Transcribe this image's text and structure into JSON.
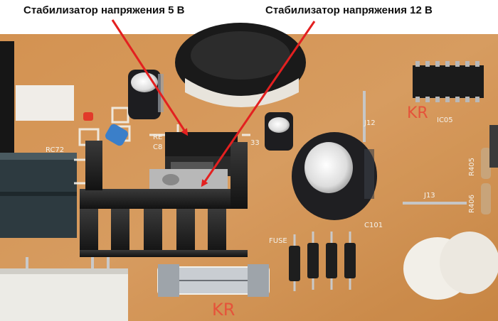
{
  "captions": {
    "regulator_5v": "Стабилизатор напряжения 5 В",
    "regulator_12v": "Стабилизатор напряжения 12 В"
  },
  "board_markings": {
    "j12": "J12",
    "j13": "J13",
    "fuse": "FUSE",
    "c101": "C101",
    "rc72": "RC72",
    "ic05": "IC05",
    "r405": "R405",
    "r406": "R406",
    "kr_top": "KR",
    "kr_bottom": "KR",
    "c8": "C8",
    "re": "RE",
    "label_33": "33"
  },
  "colors": {
    "board": "#d79a5b",
    "arrow": "#e32020",
    "heatsink": "#1c1c1c",
    "capacitor": "#1f1f22"
  }
}
